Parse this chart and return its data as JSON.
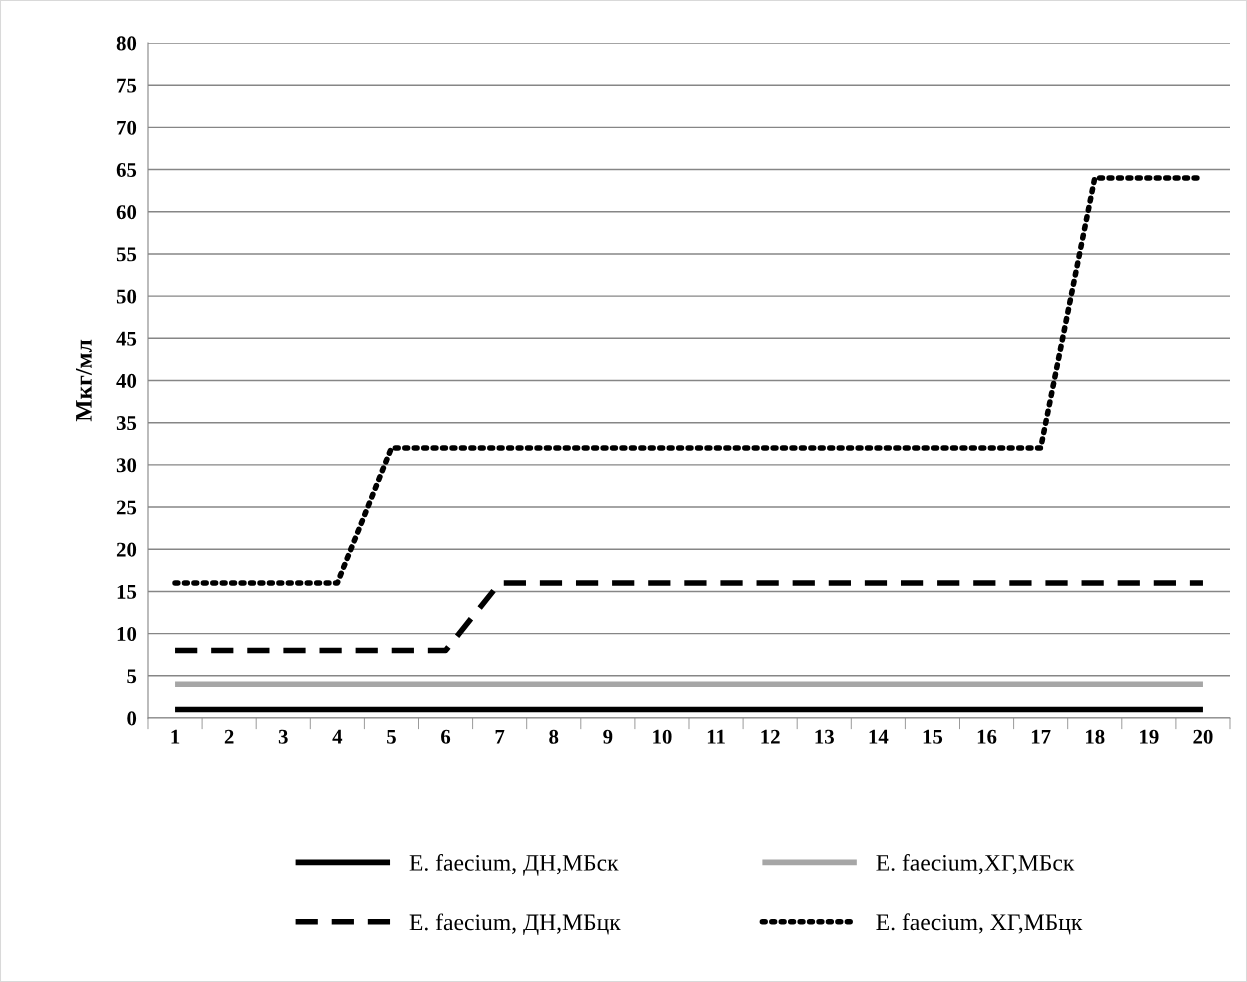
{
  "chart_data": {
    "type": "line",
    "ylabel": "Мкг/мл",
    "categories": [
      "1",
      "2",
      "3",
      "4",
      "5",
      "6",
      "7",
      "8",
      "9",
      "10",
      "11",
      "12",
      "13",
      "14",
      "15",
      "16",
      "17",
      "18",
      "19",
      "20"
    ],
    "series": [
      {
        "name": "E. faecium, ДН,МБск",
        "color": "#000000",
        "line_style": "solid",
        "values": [
          1,
          1,
          1,
          1,
          1,
          1,
          1,
          1,
          1,
          1,
          1,
          1,
          1,
          1,
          1,
          1,
          1,
          1,
          1,
          1
        ]
      },
      {
        "name": "E. faecium, ДН,МБцк",
        "color": "#000000",
        "line_style": "dashed",
        "values": [
          8,
          8,
          8,
          8,
          8,
          8,
          16,
          16,
          16,
          16,
          16,
          16,
          16,
          16,
          16,
          16,
          16,
          16,
          16,
          16
        ]
      },
      {
        "name": "E. faecium,ХГ,МБск",
        "color": "#a6a6a6",
        "line_style": "solid",
        "values": [
          4,
          4,
          4,
          4,
          4,
          4,
          4,
          4,
          4,
          4,
          4,
          4,
          4,
          4,
          4,
          4,
          4,
          4,
          4,
          4
        ]
      },
      {
        "name": "E. faecium, ХГ,МБцк",
        "color": "#000000",
        "line_style": "dotted",
        "values": [
          16,
          16,
          16,
          16,
          32,
          32,
          32,
          32,
          32,
          32,
          32,
          32,
          32,
          32,
          32,
          32,
          32,
          64,
          64,
          64
        ]
      }
    ],
    "ylim": [
      0,
      80
    ],
    "yticks": [
      0,
      5,
      10,
      15,
      20,
      25,
      30,
      35,
      40,
      45,
      50,
      55,
      60,
      65,
      70,
      75,
      80
    ],
    "grid": "y",
    "legend": "bottom",
    "marker": "none"
  }
}
